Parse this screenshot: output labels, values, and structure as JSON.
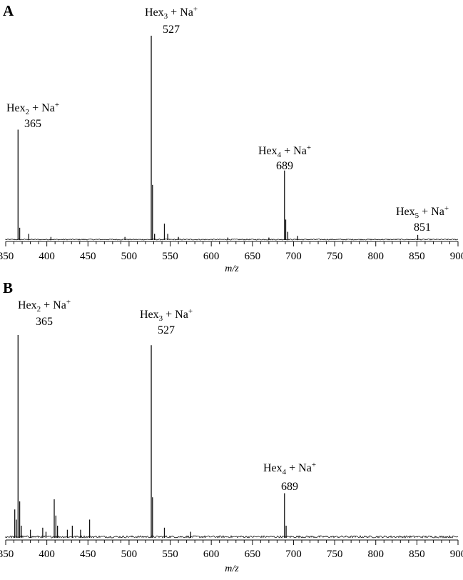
{
  "chart_data": [
    {
      "panel_label": "A",
      "type": "line",
      "xlabel": "m/z",
      "xlim": [
        350,
        900
      ],
      "xticks": [
        350,
        400,
        450,
        500,
        550,
        600,
        650,
        700,
        750,
        800,
        850,
        900
      ],
      "ylim": [
        0,
        100
      ],
      "peaks": [
        {
          "x": 365,
          "y": 54
        },
        {
          "x": 367,
          "y": 6
        },
        {
          "x": 378,
          "y": 3
        },
        {
          "x": 405,
          "y": 1.5
        },
        {
          "x": 495,
          "y": 1.5
        },
        {
          "x": 527,
          "y": 100
        },
        {
          "x": 528.5,
          "y": 27
        },
        {
          "x": 531,
          "y": 3
        },
        {
          "x": 543,
          "y": 8
        },
        {
          "x": 547,
          "y": 3
        },
        {
          "x": 560,
          "y": 1.5
        },
        {
          "x": 620,
          "y": 1.2
        },
        {
          "x": 670,
          "y": 1.2
        },
        {
          "x": 689,
          "y": 34
        },
        {
          "x": 690.5,
          "y": 10
        },
        {
          "x": 693,
          "y": 4
        },
        {
          "x": 705,
          "y": 2
        },
        {
          "x": 851,
          "y": 2.5
        }
      ],
      "annotations": [
        {
          "prefix": "Hex",
          "sub": "2",
          "suffix": " + Na",
          "sup": "+",
          "value": "365",
          "x": 365
        },
        {
          "prefix": "Hex",
          "sub": "3",
          "suffix": " + Na",
          "sup": "+",
          "value": "527",
          "x": 527
        },
        {
          "prefix": "Hex",
          "sub": "4",
          "suffix": " + Na",
          "sup": "+",
          "value": "689",
          "x": 689
        },
        {
          "prefix": "Hex",
          "sub": "5",
          "suffix": " + Na",
          "sup": "+",
          "value": "851",
          "x": 851
        }
      ]
    },
    {
      "panel_label": "B",
      "type": "line",
      "xlabel": "m/z",
      "xlim": [
        350,
        900
      ],
      "xticks": [
        350,
        400,
        450,
        500,
        550,
        600,
        650,
        700,
        750,
        800,
        850,
        900
      ],
      "ylim": [
        0,
        100
      ],
      "peaks": [
        {
          "x": 361,
          "y": 14
        },
        {
          "x": 363,
          "y": 9
        },
        {
          "x": 365,
          "y": 100
        },
        {
          "x": 367,
          "y": 18
        },
        {
          "x": 369,
          "y": 6
        },
        {
          "x": 380,
          "y": 4
        },
        {
          "x": 395,
          "y": 5
        },
        {
          "x": 399,
          "y": 3
        },
        {
          "x": 409,
          "y": 19
        },
        {
          "x": 411,
          "y": 11
        },
        {
          "x": 413,
          "y": 6
        },
        {
          "x": 425,
          "y": 4
        },
        {
          "x": 431,
          "y": 6
        },
        {
          "x": 441,
          "y": 4
        },
        {
          "x": 452,
          "y": 9
        },
        {
          "x": 527,
          "y": 95
        },
        {
          "x": 528.5,
          "y": 20
        },
        {
          "x": 543,
          "y": 5
        },
        {
          "x": 575,
          "y": 3
        },
        {
          "x": 689,
          "y": 22
        },
        {
          "x": 691,
          "y": 6
        }
      ],
      "annotations": [
        {
          "prefix": "Hex",
          "sub": "2",
          "suffix": " + Na",
          "sup": "+",
          "value": "365",
          "x": 365
        },
        {
          "prefix": "Hex",
          "sub": "3",
          "suffix": " + Na",
          "sup": "+",
          "value": "527",
          "x": 527
        },
        {
          "prefix": "Hex",
          "sub": "4",
          "suffix": " + Na",
          "sup": "+",
          "value": "689",
          "x": 689
        }
      ]
    }
  ]
}
